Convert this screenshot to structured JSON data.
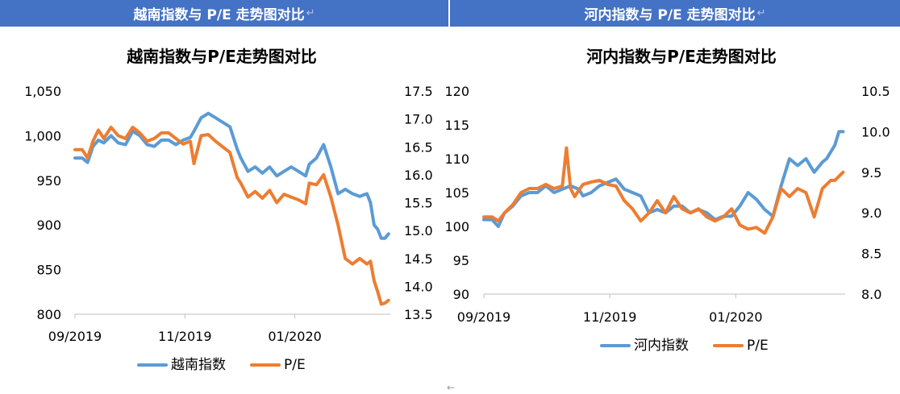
{
  "header": {
    "left_title": "越南指数与 P/E 走势图对比",
    "right_title": "河内指数与 P/E 走势图对比",
    "return_mark": "↵",
    "bottom_mark": "←"
  },
  "colors": {
    "header_bg": "#4472c4",
    "series1": "#5b9bd5",
    "series2": "#ed7d31"
  },
  "chart_data": [
    {
      "type": "line",
      "title": "越南指数与P/E走势图对比",
      "x_tick_labels": [
        "09/2019",
        "11/2019",
        "01/2020"
      ],
      "x_tick_positions": [
        0,
        61,
        122
      ],
      "x_range": [
        0,
        175
      ],
      "y_left": {
        "ticks": [
          "1,050",
          "1,000",
          "950",
          "900",
          "850",
          "800"
        ],
        "lim": [
          800,
          1050
        ]
      },
      "y_right": {
        "ticks": [
          "17.5",
          "17.0",
          "16.5",
          "16.0",
          "15.5",
          "15.0",
          "14.5",
          "14.0",
          "13.5"
        ],
        "lim": [
          13.5,
          17.5
        ]
      },
      "legend": "bottom-center",
      "series": [
        {
          "name": "越南指数",
          "axis": "left",
          "color": "#5b9bd5",
          "x": [
            0,
            4,
            7,
            10,
            13,
            16,
            20,
            24,
            28,
            32,
            36,
            40,
            44,
            48,
            52,
            56,
            60,
            64,
            66,
            70,
            74,
            78,
            82,
            86,
            90,
            92,
            96,
            100,
            104,
            108,
            112,
            116,
            120,
            124,
            128,
            130,
            134,
            138,
            142,
            146,
            150,
            154,
            158,
            162,
            164,
            166,
            168,
            170,
            172,
            174
          ],
          "y": [
            975,
            975,
            970,
            988,
            995,
            992,
            1000,
            992,
            990,
            1005,
            1000,
            990,
            988,
            995,
            995,
            990,
            995,
            998,
            1005,
            1020,
            1025,
            1020,
            1015,
            1010,
            985,
            975,
            960,
            965,
            958,
            965,
            955,
            960,
            965,
            960,
            955,
            968,
            975,
            990,
            965,
            935,
            940,
            935,
            932,
            935,
            925,
            900,
            895,
            885,
            885,
            890
          ]
        },
        {
          "name": "P/E",
          "axis": "right",
          "color": "#ed7d31",
          "x": [
            0,
            4,
            7,
            10,
            13,
            16,
            20,
            24,
            28,
            32,
            36,
            40,
            44,
            48,
            52,
            56,
            60,
            64,
            66,
            70,
            74,
            78,
            82,
            86,
            90,
            92,
            96,
            100,
            104,
            108,
            112,
            116,
            120,
            124,
            128,
            130,
            134,
            138,
            142,
            146,
            150,
            154,
            158,
            162,
            164,
            166,
            168,
            170,
            172,
            174
          ],
          "y": [
            16.45,
            16.45,
            16.3,
            16.6,
            16.8,
            16.65,
            16.85,
            16.7,
            16.65,
            16.85,
            16.75,
            16.6,
            16.65,
            16.75,
            16.75,
            16.65,
            16.55,
            16.6,
            16.2,
            16.7,
            16.72,
            16.6,
            16.5,
            16.4,
            15.95,
            15.85,
            15.6,
            15.7,
            15.58,
            15.72,
            15.5,
            15.65,
            15.6,
            15.55,
            15.48,
            15.85,
            15.82,
            16.0,
            15.6,
            15.1,
            14.5,
            14.4,
            14.5,
            14.4,
            14.45,
            14.1,
            13.9,
            13.68,
            13.7,
            13.75
          ]
        }
      ]
    },
    {
      "type": "line",
      "title": "河内指数与P/E走势图对比",
      "x_tick_labels": [
        "09/2019",
        "11/2019",
        "01/2020"
      ],
      "x_tick_positions": [
        0,
        61,
        122
      ],
      "x_range": [
        0,
        175
      ],
      "y_left": {
        "ticks": [
          "120",
          "115",
          "110",
          "105",
          "100",
          "95",
          "90"
        ],
        "lim": [
          90,
          120
        ]
      },
      "y_right": {
        "ticks": [
          "10.5",
          "10.0",
          "9.5",
          "9.0",
          "8.5",
          "8.0"
        ],
        "lim": [
          8.0,
          10.5
        ]
      },
      "legend": "bottom-center",
      "series": [
        {
          "name": "河内指数",
          "axis": "left",
          "color": "#5b9bd5",
          "x": [
            0,
            4,
            7,
            10,
            14,
            18,
            22,
            26,
            30,
            34,
            38,
            42,
            46,
            48,
            52,
            56,
            60,
            64,
            68,
            72,
            76,
            80,
            84,
            88,
            92,
            96,
            100,
            104,
            108,
            112,
            116,
            120,
            124,
            128,
            132,
            136,
            140,
            144,
            148,
            152,
            156,
            160,
            164,
            166,
            168,
            170,
            172,
            174
          ],
          "y": [
            101,
            101,
            100,
            102,
            103,
            104.5,
            105,
            105,
            106,
            105,
            105.5,
            106,
            105.5,
            104.5,
            105,
            106,
            106.5,
            107,
            105.5,
            105,
            104.5,
            102,
            102.5,
            102,
            103,
            103,
            102,
            102.5,
            102,
            101,
            101.5,
            101.5,
            103,
            105,
            104,
            102.5,
            101.5,
            106,
            110,
            109,
            110,
            108,
            109.5,
            110,
            111,
            112,
            114,
            114
          ]
        },
        {
          "name": "P/E",
          "axis": "right",
          "color": "#ed7d31",
          "x": [
            0,
            4,
            7,
            10,
            14,
            18,
            22,
            26,
            30,
            34,
            38,
            40,
            42,
            44,
            46,
            48,
            52,
            56,
            60,
            64,
            68,
            72,
            76,
            80,
            84,
            88,
            92,
            96,
            100,
            104,
            108,
            112,
            116,
            120,
            124,
            128,
            132,
            136,
            140,
            144,
            148,
            152,
            156,
            160,
            164,
            166,
            168,
            170,
            172,
            174
          ],
          "y": [
            8.95,
            8.95,
            8.9,
            9.0,
            9.1,
            9.25,
            9.3,
            9.3,
            9.35,
            9.3,
            9.33,
            9.8,
            9.3,
            9.2,
            9.28,
            9.35,
            9.38,
            9.4,
            9.35,
            9.33,
            9.15,
            9.05,
            8.9,
            9.0,
            9.15,
            9.0,
            9.2,
            9.05,
            9.0,
            9.05,
            8.95,
            8.9,
            8.95,
            9.05,
            8.85,
            8.8,
            8.82,
            8.75,
            8.95,
            9.3,
            9.2,
            9.3,
            9.25,
            8.95,
            9.3,
            9.35,
            9.4,
            9.4,
            9.45,
            9.5
          ]
        }
      ]
    }
  ]
}
